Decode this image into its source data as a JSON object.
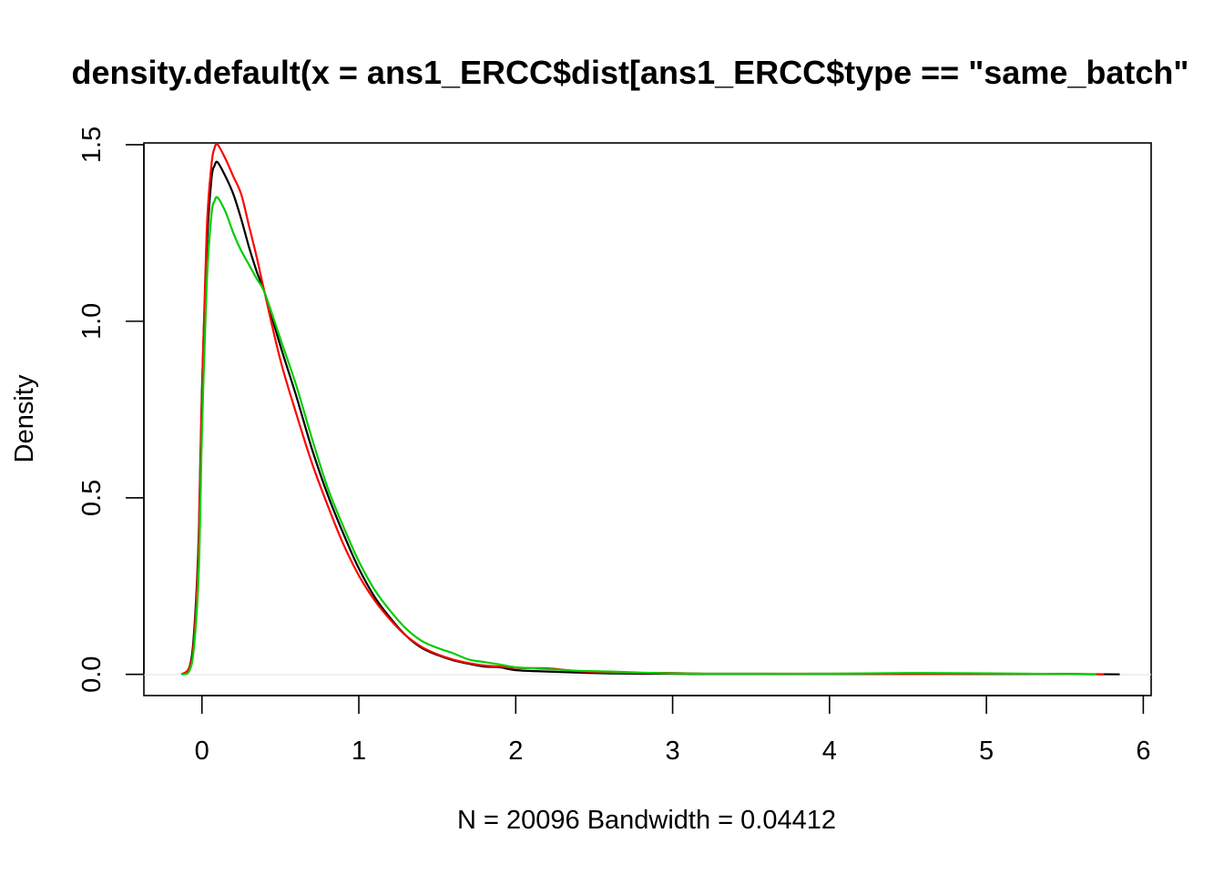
{
  "chart_data": {
    "type": "line",
    "title": "density.default(x = ans1_ERCC$dist[ans1_ERCC$type == \"same_batch\"",
    "xlabel": "N = 20096   Bandwidth = 0.04412",
    "ylabel": "Density",
    "xlim": [
      -0.37,
      6.05
    ],
    "ylim": [
      -0.06,
      1.505
    ],
    "x_ticks": [
      0,
      1,
      2,
      3,
      4,
      5,
      6
    ],
    "y_ticks": [
      0.0,
      0.5,
      1.0,
      1.5
    ],
    "x_tick_labels": [
      "0",
      "1",
      "2",
      "3",
      "4",
      "5",
      "6"
    ],
    "y_tick_labels": [
      "0.0",
      "0.5",
      "1.0",
      "1.5"
    ],
    "grid": false,
    "series": [
      {
        "color": "#000000",
        "x": [
          -0.13,
          -0.08,
          -0.05,
          -0.02,
          0.0,
          0.03,
          0.06,
          0.08,
          0.1,
          0.15,
          0.2,
          0.25,
          0.3,
          0.35,
          0.4,
          0.5,
          0.6,
          0.7,
          0.8,
          0.9,
          1.0,
          1.1,
          1.2,
          1.3,
          1.4,
          1.5,
          1.6,
          1.7,
          1.8,
          1.9,
          2.0,
          2.2,
          2.4,
          2.6,
          2.8,
          3.0,
          3.2,
          3.5,
          4.0,
          4.5,
          5.0,
          5.5,
          5.85
        ],
        "y": [
          0.0,
          0.02,
          0.12,
          0.4,
          0.8,
          1.2,
          1.4,
          1.44,
          1.45,
          1.41,
          1.36,
          1.29,
          1.21,
          1.14,
          1.08,
          0.93,
          0.79,
          0.64,
          0.51,
          0.4,
          0.3,
          0.22,
          0.16,
          0.11,
          0.075,
          0.055,
          0.04,
          0.03,
          0.022,
          0.02,
          0.012,
          0.008,
          0.005,
          0.003,
          0.002,
          0.002,
          0.001,
          0.001,
          0.001,
          0.001,
          0.001,
          0.001,
          0.0
        ]
      },
      {
        "color": "#ff0000",
        "x": [
          -0.13,
          -0.08,
          -0.05,
          -0.02,
          0.0,
          0.03,
          0.06,
          0.08,
          0.1,
          0.15,
          0.2,
          0.25,
          0.3,
          0.35,
          0.4,
          0.5,
          0.6,
          0.7,
          0.8,
          0.9,
          1.0,
          1.1,
          1.2,
          1.3,
          1.4,
          1.5,
          1.6,
          1.7,
          1.8,
          1.9,
          2.0,
          2.2,
          2.4,
          2.6,
          2.8,
          3.0,
          3.2,
          3.5,
          4.0,
          4.5,
          5.0,
          5.5,
          5.75
        ],
        "y": [
          0.0,
          0.02,
          0.1,
          0.38,
          0.78,
          1.25,
          1.44,
          1.49,
          1.5,
          1.46,
          1.41,
          1.36,
          1.27,
          1.18,
          1.08,
          0.89,
          0.74,
          0.6,
          0.48,
          0.37,
          0.28,
          0.21,
          0.155,
          0.11,
          0.078,
          0.057,
          0.042,
          0.032,
          0.025,
          0.022,
          0.018,
          0.017,
          0.009,
          0.005,
          0.004,
          0.004,
          0.002,
          0.002,
          0.002,
          0.002,
          0.002,
          0.001,
          0.0
        ]
      },
      {
        "color": "#00cd00",
        "x": [
          -0.13,
          -0.08,
          -0.05,
          -0.02,
          0.0,
          0.03,
          0.06,
          0.08,
          0.1,
          0.15,
          0.2,
          0.25,
          0.3,
          0.35,
          0.4,
          0.5,
          0.6,
          0.7,
          0.8,
          0.9,
          1.0,
          1.1,
          1.2,
          1.3,
          1.4,
          1.5,
          1.6,
          1.7,
          1.8,
          1.9,
          2.0,
          2.2,
          2.4,
          2.6,
          2.8,
          3.0,
          3.2,
          3.5,
          4.0,
          4.5,
          5.0,
          5.5,
          5.7
        ],
        "y": [
          0.0,
          0.01,
          0.08,
          0.3,
          0.68,
          1.1,
          1.3,
          1.34,
          1.35,
          1.31,
          1.25,
          1.2,
          1.16,
          1.12,
          1.08,
          0.95,
          0.82,
          0.67,
          0.53,
          0.42,
          0.32,
          0.24,
          0.18,
          0.13,
          0.095,
          0.075,
          0.06,
          0.042,
          0.035,
          0.028,
          0.02,
          0.015,
          0.01,
          0.008,
          0.005,
          0.003,
          0.002,
          0.002,
          0.002,
          0.004,
          0.003,
          0.001,
          0.0
        ]
      }
    ]
  }
}
